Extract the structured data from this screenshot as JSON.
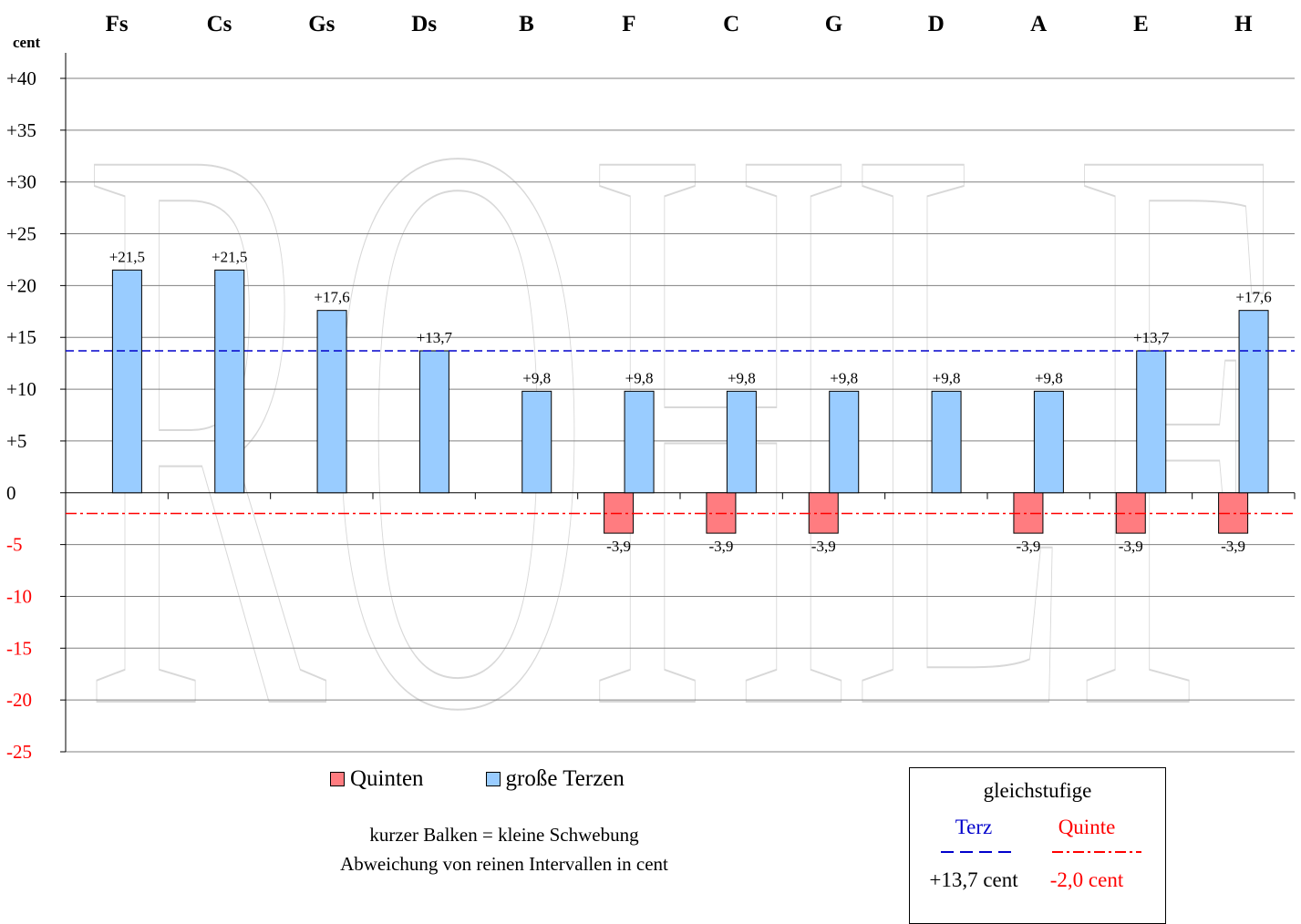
{
  "chart_data": {
    "type": "bar",
    "categories": [
      "Fs",
      "Cs",
      "Gs",
      "Ds",
      "B",
      "F",
      "C",
      "G",
      "D",
      "A",
      "E",
      "H"
    ],
    "series": [
      {
        "name": "Quinten",
        "color": "#ff7c80",
        "values": [
          null,
          null,
          null,
          null,
          null,
          -3.9,
          -3.9,
          -3.9,
          null,
          -3.9,
          -3.9,
          -3.9
        ],
        "labels": [
          "",
          "",
          "",
          "",
          "",
          "-3,9",
          "-3,9",
          "-3,9",
          "",
          "-3,9",
          "-3,9",
          "-3,9"
        ]
      },
      {
        "name": "große Terzen",
        "color": "#99ccff",
        "values": [
          21.5,
          21.5,
          17.6,
          13.7,
          9.8,
          9.8,
          9.8,
          9.8,
          9.8,
          9.8,
          13.7,
          17.6
        ],
        "labels": [
          "+21,5",
          "+21,5",
          "+17,6",
          "+13,7",
          "+9,8",
          "+9,8",
          "+9,8",
          "+9,8",
          "+9,8",
          "+9,8",
          "+13,7",
          "+17,6"
        ]
      }
    ],
    "ylabel": "cent",
    "ylim": [
      -25,
      40
    ],
    "yticks": [
      40,
      35,
      30,
      25,
      20,
      15,
      10,
      5,
      0,
      -5,
      -10,
      -15,
      -20,
      -25
    ],
    "ytick_labels": [
      "+40",
      "+35",
      "+30",
      "+25",
      "+20",
      "+15",
      "+10",
      "+5",
      "0",
      "-5",
      "-10",
      "-15",
      "-20",
      "-25"
    ],
    "negative_tick_color": "#ff0000",
    "reference_lines": [
      {
        "name": "Terz",
        "value": 13.7,
        "color": "#0000cc",
        "style": "dashed"
      },
      {
        "name": "Quinte",
        "value": -2.0,
        "color": "#ff0000",
        "style": "dash-dot"
      }
    ],
    "grid": true,
    "watermark": "ROHLF"
  },
  "legend": {
    "quinten_label": "Quinten",
    "terzen_label": "große Terzen"
  },
  "notes": {
    "line1": "kurzer Balken = kleine Schwebung",
    "line2": "Abweichung von reinen Intervallen in cent"
  },
  "reference_box": {
    "title": "gleichstufige",
    "terz_label": "Terz",
    "quinte_label": "Quinte",
    "terz_value": "+13,7 cent",
    "quinte_value": "-2,0 cent",
    "terz_color": "#0000cc",
    "quinte_color": "#ff0000"
  }
}
